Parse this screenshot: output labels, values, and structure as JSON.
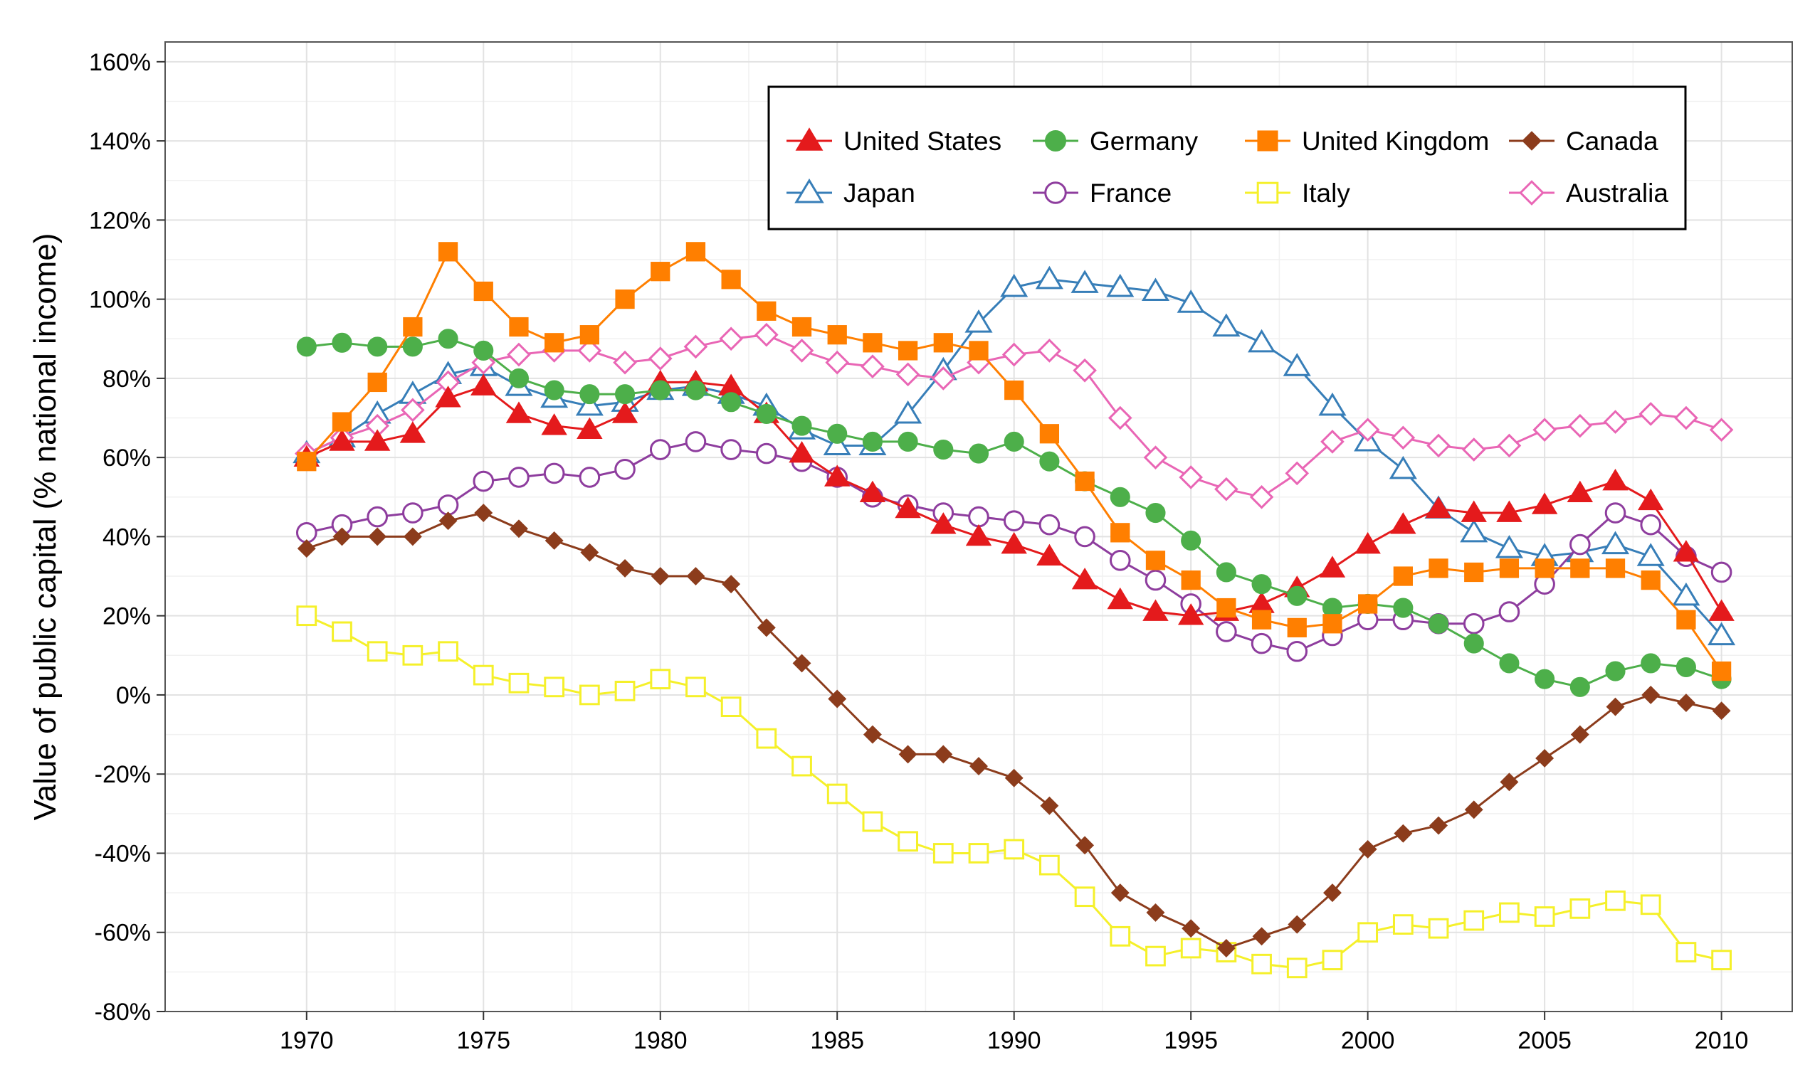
{
  "chart_data": {
    "type": "line",
    "title": "",
    "xlabel": "",
    "ylabel": "Value of public capital (% national income)",
    "xlim": [
      1966,
      2012
    ],
    "ylim": [
      -80,
      165
    ],
    "x_ticks": [
      1970,
      1975,
      1980,
      1985,
      1990,
      1995,
      2000,
      2005,
      2010
    ],
    "x_tick_labels": [
      "1970",
      "1975",
      "1980",
      "1985",
      "1990",
      "1995",
      "2000",
      "2005",
      "2010"
    ],
    "y_ticks": [
      -80,
      -60,
      -40,
      -20,
      0,
      20,
      40,
      60,
      80,
      100,
      120,
      140,
      160
    ],
    "y_tick_labels": [
      "-80%",
      "-60%",
      "-40%",
      "-20%",
      "0%",
      "20%",
      "40%",
      "60%",
      "80%",
      "100%",
      "120%",
      "140%",
      "160%"
    ],
    "grid": true,
    "legend_position": "top-right",
    "x": [
      1970,
      1971,
      1972,
      1973,
      1974,
      1975,
      1976,
      1977,
      1978,
      1979,
      1980,
      1981,
      1982,
      1983,
      1984,
      1985,
      1986,
      1987,
      1988,
      1989,
      1990,
      1991,
      1992,
      1993,
      1994,
      1995,
      1996,
      1997,
      1998,
      1999,
      2000,
      2001,
      2002,
      2003,
      2004,
      2005,
      2006,
      2007,
      2008,
      2009,
      2010
    ],
    "series": [
      {
        "name": "United States",
        "color": "#e41a1c",
        "marker": "triangle",
        "filled": true,
        "values": [
          60,
          64,
          64,
          66,
          75,
          78,
          71,
          68,
          67,
          71,
          79,
          79,
          78,
          71,
          61,
          55,
          51,
          47,
          43,
          40,
          38,
          35,
          29,
          24,
          21,
          20,
          21,
          23,
          27,
          32,
          38,
          43,
          47,
          46,
          46,
          48,
          51,
          54,
          49,
          36,
          21
        ]
      },
      {
        "name": "Germany",
        "color": "#4daf4a",
        "marker": "circle",
        "filled": true,
        "values": [
          88,
          89,
          88,
          88,
          90,
          87,
          80,
          77,
          76,
          76,
          77,
          77,
          74,
          71,
          68,
          66,
          64,
          64,
          62,
          61,
          64,
          59,
          54,
          50,
          46,
          39,
          31,
          28,
          25,
          22,
          23,
          22,
          18,
          13,
          8,
          4,
          2,
          6,
          8,
          7,
          4
        ]
      },
      {
        "name": "United Kingdom",
        "color": "#ff7f00",
        "marker": "square",
        "filled": true,
        "values": [
          59,
          69,
          79,
          93,
          112,
          102,
          93,
          89,
          91,
          100,
          107,
          112,
          105,
          97,
          93,
          91,
          89,
          87,
          89,
          87,
          77,
          66,
          54,
          41,
          34,
          29,
          22,
          19,
          17,
          18,
          23,
          30,
          32,
          31,
          32,
          32,
          32,
          32,
          29,
          19,
          6
        ]
      },
      {
        "name": "Canada",
        "color": "#8c3c1c",
        "marker": "diamond",
        "filled": true,
        "values": [
          37,
          40,
          40,
          40,
          44,
          46,
          42,
          39,
          36,
          32,
          30,
          30,
          28,
          17,
          8,
          -1,
          -10,
          -15,
          -15,
          -18,
          -21,
          -28,
          -38,
          -50,
          -55,
          -59,
          -64,
          -61,
          -58,
          -50,
          -39,
          -35,
          -33,
          -29,
          -22,
          -16,
          -10,
          -3,
          0,
          -2,
          -4
        ]
      },
      {
        "name": "Japan",
        "color": "#377eb8",
        "marker": "triangle",
        "filled": false,
        "values": [
          61,
          65,
          71,
          76,
          81,
          83,
          78,
          75,
          73,
          74,
          77,
          78,
          76,
          73,
          67,
          63,
          63,
          71,
          82,
          94,
          103,
          105,
          104,
          103,
          102,
          99,
          93,
          89,
          83,
          73,
          64,
          57,
          47,
          41,
          37,
          35,
          36,
          38,
          35,
          25,
          15
        ]
      },
      {
        "name": "France",
        "color": "#8e3d9e",
        "marker": "circle",
        "filled": false,
        "values": [
          41,
          43,
          45,
          46,
          48,
          54,
          55,
          56,
          55,
          57,
          62,
          64,
          62,
          61,
          59,
          55,
          50,
          48,
          46,
          45,
          44,
          43,
          40,
          34,
          29,
          23,
          16,
          13,
          11,
          15,
          19,
          19,
          18,
          18,
          21,
          28,
          38,
          46,
          43,
          35,
          31
        ]
      },
      {
        "name": "Italy",
        "color": "#f5f02a",
        "marker": "square",
        "filled": false,
        "values": [
          20,
          16,
          11,
          10,
          11,
          5,
          3,
          2,
          0,
          1,
          4,
          2,
          -3,
          -11,
          -18,
          -25,
          -32,
          -37,
          -40,
          -40,
          -39,
          -43,
          -51,
          -61,
          -66,
          -64,
          -65,
          -68,
          -69,
          -67,
          -60,
          -58,
          -59,
          -57,
          -55,
          -56,
          -54,
          -52,
          -53,
          -65,
          -67
        ]
      },
      {
        "name": "Australia",
        "color": "#e966b5",
        "marker": "diamond",
        "filled": false,
        "values": [
          61,
          65,
          68,
          72,
          79,
          84,
          86,
          87,
          87,
          84,
          85,
          88,
          90,
          91,
          87,
          84,
          83,
          81,
          80,
          84,
          86,
          87,
          82,
          70,
          60,
          55,
          52,
          50,
          56,
          64,
          67,
          65,
          63,
          62,
          63,
          67,
          68,
          69,
          71,
          70,
          67
        ]
      }
    ]
  }
}
